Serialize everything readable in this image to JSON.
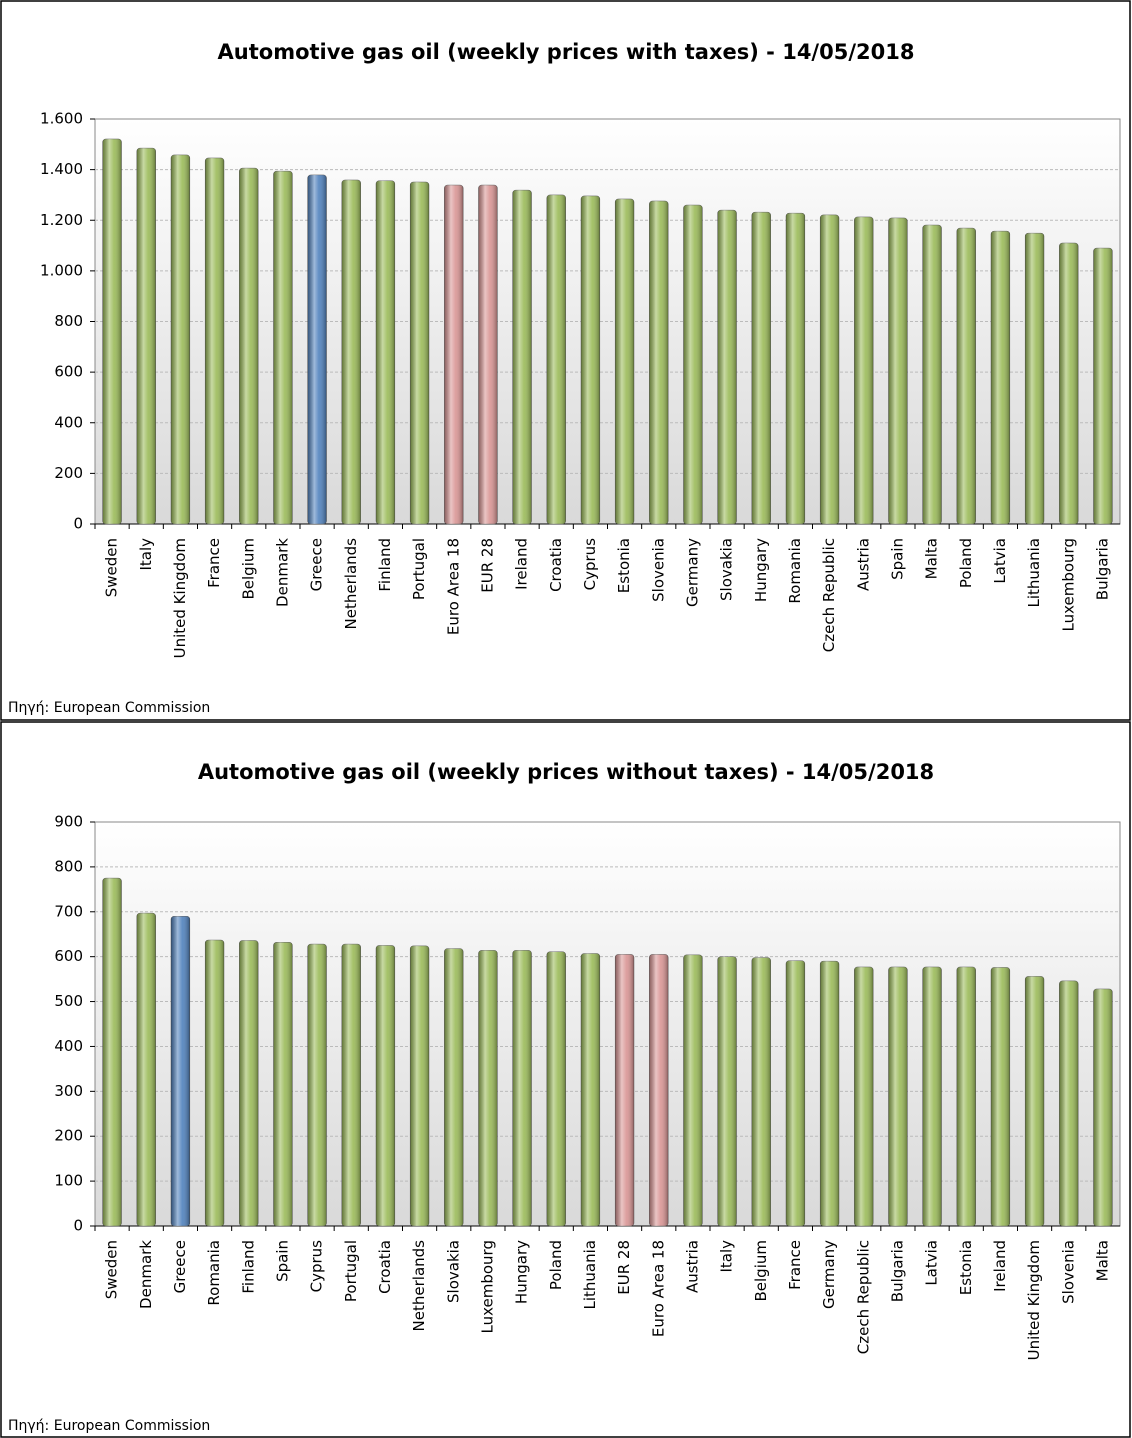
{
  "chart_data": [
    {
      "type": "bar",
      "title": "Automotive gas oil (weekly prices with taxes) - 14/05/2018",
      "source": "Πηγή: European Commission",
      "categories": [
        "Sweden",
        "Italy",
        "United Kingdom",
        "France",
        "Belgium",
        "Denmark",
        "Greece",
        "Netherlands",
        "Finland",
        "Portugal",
        "Euro Area 18",
        "EUR 28",
        "Ireland",
        "Croatia",
        "Cyprus",
        "Estonia",
        "Slovenia",
        "Germany",
        "Slovakia",
        "Hungary",
        "Romania",
        "Czech Republic",
        "Austria",
        "Spain",
        "Malta",
        "Poland",
        "Latvia",
        "Lithuania",
        "Luxembourg",
        "Bulgaria"
      ],
      "values": [
        1521,
        1485,
        1458,
        1446,
        1406,
        1394,
        1379,
        1359,
        1356,
        1351,
        1339,
        1339,
        1319,
        1300,
        1296,
        1284,
        1276,
        1260,
        1240,
        1232,
        1228,
        1221,
        1213,
        1209,
        1181,
        1169,
        1157,
        1149,
        1110,
        1090
      ],
      "colors": [
        "#9bbb59",
        "#9bbb59",
        "#9bbb59",
        "#9bbb59",
        "#9bbb59",
        "#9bbb59",
        "#4f81bd",
        "#9bbb59",
        "#9bbb59",
        "#9bbb59",
        "#d99594",
        "#d99594",
        "#9bbb59",
        "#9bbb59",
        "#9bbb59",
        "#9bbb59",
        "#9bbb59",
        "#9bbb59",
        "#9bbb59",
        "#9bbb59",
        "#9bbb59",
        "#9bbb59",
        "#9bbb59",
        "#9bbb59",
        "#9bbb59",
        "#9bbb59",
        "#9bbb59",
        "#9bbb59",
        "#9bbb59",
        "#9bbb59"
      ],
      "ylim": [
        0,
        1600
      ],
      "yticks": [
        0,
        200,
        400,
        600,
        800,
        {
          "value": 1000,
          "label": "1.000"
        },
        {
          "value": 1200,
          "label": "1.200"
        },
        {
          "value": 1400,
          "label": "1.400"
        },
        {
          "value": 1600,
          "label": "1.600"
        }
      ],
      "grid": true
    },
    {
      "type": "bar",
      "title": "Automotive gas oil (weekly prices without taxes) - 14/05/2018",
      "source": "Πηγή: European Commission",
      "categories": [
        "Sweden",
        "Denmark",
        "Greece",
        "Romania",
        "Finland",
        "Spain",
        "Cyprus",
        "Portugal",
        "Croatia",
        "Netherlands",
        "Slovakia",
        "Luxembourg",
        "Hungary",
        "Poland",
        "Lithuania",
        "EUR 28",
        "Euro Area 18",
        "Austria",
        "Italy",
        "Belgium",
        "France",
        "Germany",
        "Czech Republic",
        "Bulgaria",
        "Latvia",
        "Estonia",
        "Ireland",
        "United Kingdom",
        "Slovenia",
        "Malta"
      ],
      "values": [
        775,
        697,
        690,
        637,
        636,
        632,
        628,
        628,
        625,
        624,
        618,
        614,
        614,
        611,
        607,
        605,
        605,
        604,
        600,
        598,
        591,
        590,
        577,
        577,
        577,
        577,
        576,
        556,
        546,
        528
      ],
      "colors": [
        "#9bbb59",
        "#9bbb59",
        "#4f81bd",
        "#9bbb59",
        "#9bbb59",
        "#9bbb59",
        "#9bbb59",
        "#9bbb59",
        "#9bbb59",
        "#9bbb59",
        "#9bbb59",
        "#9bbb59",
        "#9bbb59",
        "#9bbb59",
        "#9bbb59",
        "#d99594",
        "#d99594",
        "#9bbb59",
        "#9bbb59",
        "#9bbb59",
        "#9bbb59",
        "#9bbb59",
        "#9bbb59",
        "#9bbb59",
        "#9bbb59",
        "#9bbb59",
        "#9bbb59",
        "#9bbb59",
        "#9bbb59",
        "#9bbb59"
      ],
      "ylim": [
        0,
        900
      ],
      "yticks": [
        0,
        100,
        200,
        300,
        400,
        500,
        600,
        700,
        800,
        900
      ],
      "grid": true
    }
  ]
}
